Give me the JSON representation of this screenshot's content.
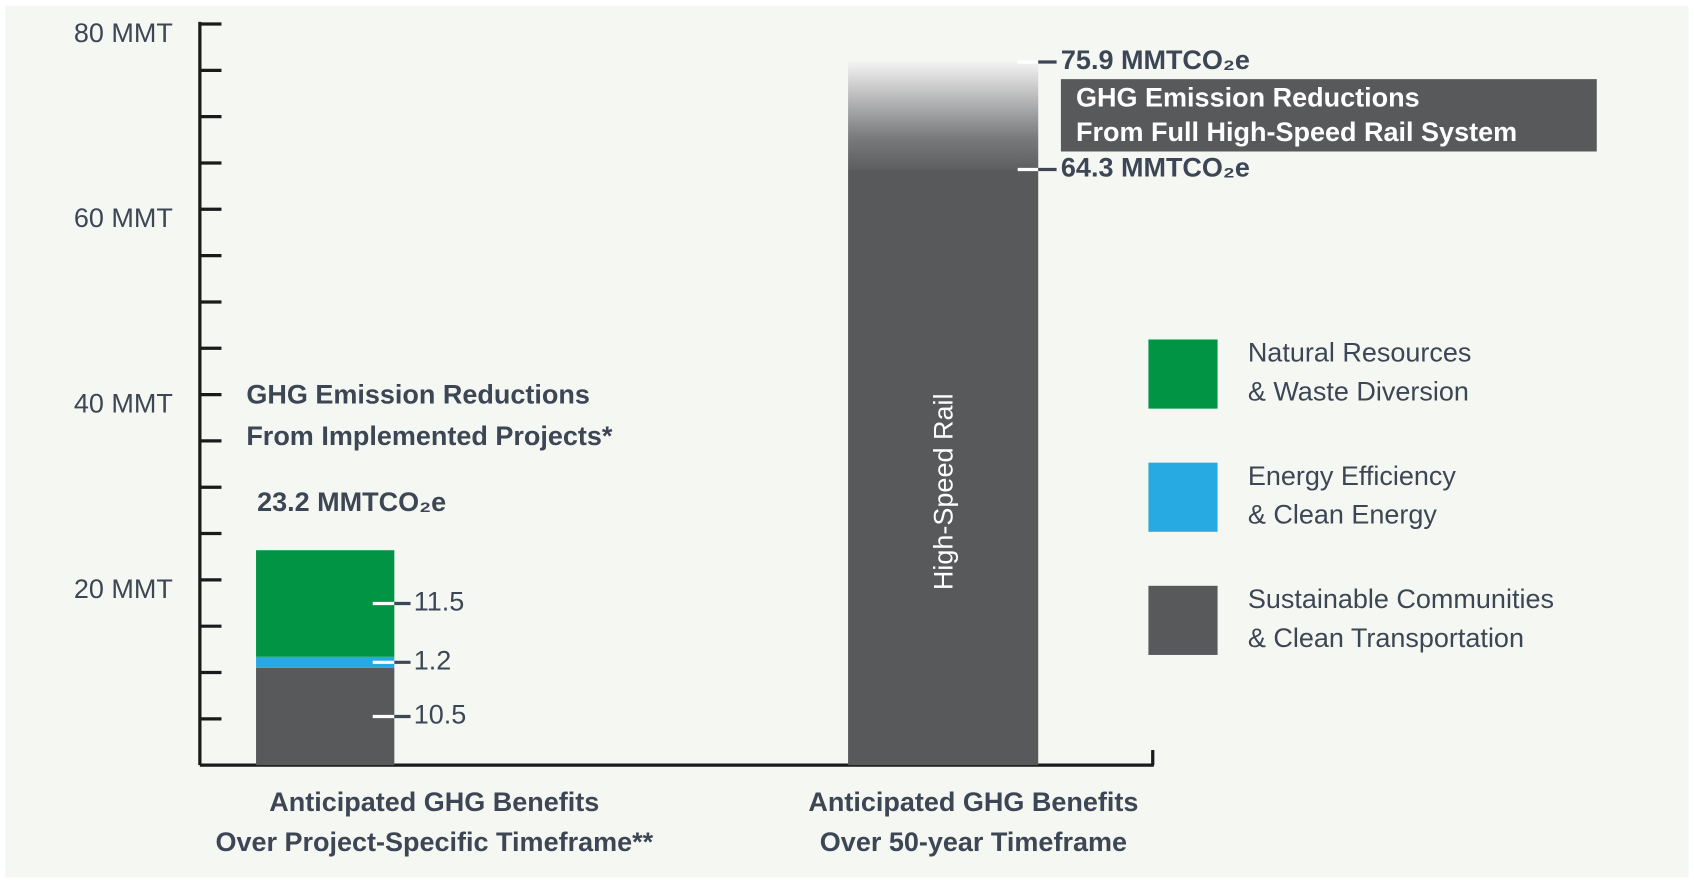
{
  "chart_data": {
    "type": "stacked_bar",
    "categories": [
      [
        "Anticipated GHG Benefits",
        "Over Project-Specific Timeframe**"
      ],
      [
        "Anticipated GHG Benefits",
        "Over 50-year Timeframe"
      ]
    ],
    "series": [
      {
        "name": [
          "Natural Resources",
          "& Waste Diversion"
        ],
        "color": "#009444",
        "values": [
          11.5,
          null
        ]
      },
      {
        "name": [
          "Energy Efficiency",
          "& Clean Energy"
        ],
        "color": "#27aae1",
        "values": [
          1.2,
          null
        ]
      },
      {
        "name": [
          "Sustainable Communities",
          "& Clean Transportation"
        ],
        "color": "#58595b",
        "values": [
          10.5,
          null
        ]
      }
    ],
    "total": 23.2,
    "total_label": "23.2 MMTCO₂e",
    "total_note": [
      "GHG Emission Reductions",
      "From Implemented Projects*"
    ],
    "rail": {
      "label": "High-Speed Rail",
      "color": "#58595b",
      "low": 64.3,
      "high": 75.9,
      "low_label": "64.3 MMTCO₂e",
      "high_label": "75.9 MMTCO₂e",
      "note": [
        "GHG Emission Reductions",
        "From Full High-Speed Rail System"
      ]
    },
    "ylim": [
      0,
      80
    ],
    "yticks": [
      {
        "value": 20,
        "label": "20 MMT"
      },
      {
        "value": 40,
        "label": "40 MMT"
      },
      {
        "value": 60,
        "label": "60 MMT"
      },
      {
        "value": 80,
        "label": "80 MMT"
      }
    ],
    "minor_yticks": [
      5,
      10,
      15,
      20,
      25,
      30,
      35,
      40,
      45,
      50,
      55,
      60,
      65,
      70,
      75,
      80
    ]
  }
}
